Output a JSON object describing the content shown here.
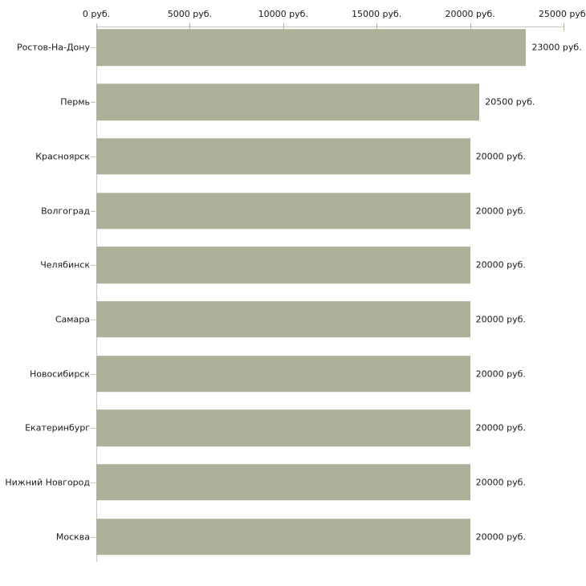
{
  "chart_data": {
    "type": "bar",
    "orientation": "horizontal",
    "title": "",
    "xlabel": "",
    "ylabel": "",
    "unit": "руб.",
    "categories": [
      "Ростов-На-Дону",
      "Пермь",
      "Красноярск",
      "Волгоград",
      "Челябинск",
      "Самара",
      "Новосибирск",
      "Екатеринбург",
      "Нижний Новгород",
      "Москва"
    ],
    "values": [
      23000,
      20500,
      20000,
      20000,
      20000,
      20000,
      20000,
      20000,
      20000,
      20000
    ],
    "value_labels": [
      "23000 руб.",
      "20500 руб.",
      "20000 руб.",
      "20000 руб.",
      "20000 руб.",
      "20000 руб.",
      "20000 руб.",
      "20000 руб.",
      "20000 руб.",
      "20000 руб."
    ],
    "x_ticks": [
      "0 руб.",
      "5000 руб.",
      "10000 руб.",
      "15000 руб.",
      "20000 руб.",
      "25000 руб."
    ],
    "x_tick_values": [
      0,
      5000,
      10000,
      15000,
      20000,
      25000
    ],
    "xlim": [
      0,
      25000
    ],
    "grid": "off",
    "legend": "none",
    "colors": {
      "bar": "#abb199",
      "axis_line": "#c6c6c6",
      "x_tick_mark": "#b9b982",
      "y_tick_mark": "#c3c3a2",
      "text": "#1a1a1a",
      "background": "#ffffff"
    }
  }
}
